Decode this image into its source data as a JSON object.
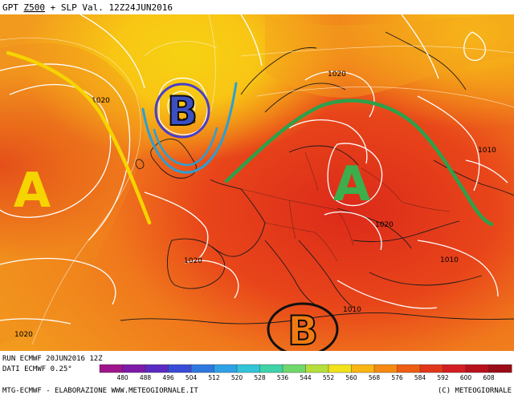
{
  "header": {
    "title_pre": "GPT ",
    "title_z": "Z500",
    "title_post": " + SLP Val. 12Z24JUN2016"
  },
  "isobar_labels": [
    "1020",
    "1020",
    "1020",
    "1010",
    "1020",
    "1020",
    "1010",
    "1020",
    "1010",
    "1020"
  ],
  "annotations": {
    "high_west": "A",
    "high_center": "A",
    "low_north": "B",
    "low_south": "B",
    "ridge_color": "#2ea04a",
    "trough_color_west": "#f5d400",
    "trough_color_north": "#2b9fd6",
    "high_color_west": "#f5d400",
    "high_color_center": "#3cae4c",
    "low_north_fill": "#3b4fc2",
    "low_south_fill": "#f07a12"
  },
  "footer": {
    "run": "RUN ECMWF 20JUN2016 12Z",
    "data": "DATI ECMWF 0.25°",
    "credits_left": "MTG-ECMWF - ELABORAZIONE WWW.METEOGIORNALE.IT",
    "credits_right": "(C) METEOGIORNALE"
  },
  "color_scale": {
    "labels": [
      "480",
      "488",
      "496",
      "504",
      "512",
      "520",
      "528",
      "536",
      "544",
      "552",
      "560",
      "568",
      "576",
      "584",
      "592",
      "600",
      "608"
    ],
    "colors": [
      "#a0148c",
      "#7d1aa8",
      "#5a2bc2",
      "#3a4cd6",
      "#2f78e0",
      "#2fa2e6",
      "#32c4d8",
      "#3fd3a8",
      "#6fd86a",
      "#b6de3c",
      "#f2e21a",
      "#fbb512",
      "#f68a12",
      "#ee5e14",
      "#e2361a",
      "#d21e22",
      "#b8101c",
      "#9a0c18"
    ]
  }
}
